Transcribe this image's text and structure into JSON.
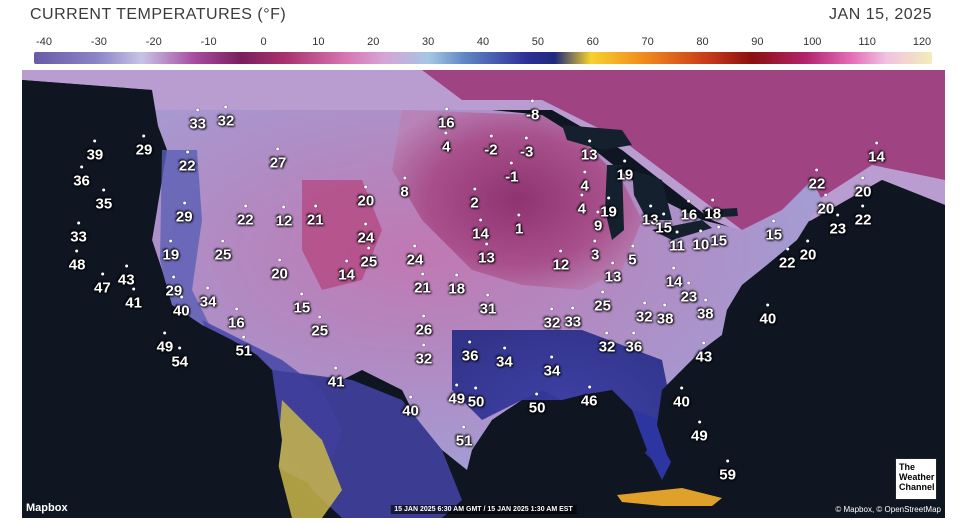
{
  "header": {
    "title": "CURRENT TEMPERATURES (°F)",
    "date": "JAN 15, 2025"
  },
  "scale": {
    "labels": [
      "-40",
      "-30",
      "-20",
      "-10",
      "0",
      "10",
      "20",
      "30",
      "40",
      "50",
      "60",
      "70",
      "80",
      "90",
      "100",
      "110",
      "120"
    ]
  },
  "colors": {
    "background": "#ffffff",
    "ocean": "#0f1622",
    "cold_purple": "#a8336e",
    "cool_lavender": "#c7c3e6",
    "mild_blue": "#3b3fa8",
    "warm_yellow": "#d9c24a"
  },
  "cities": [
    {
      "temp": "39",
      "lon": -123.1,
      "lat": 46.0
    },
    {
      "temp": "29",
      "lon": -119.8,
      "lat": 46.3
    },
    {
      "temp": "33",
      "lon": -116.2,
      "lat": 48.0
    },
    {
      "temp": "32",
      "lon": -114.3,
      "lat": 48.2
    },
    {
      "temp": "22",
      "lon": -116.9,
      "lat": 45.3
    },
    {
      "temp": "36",
      "lon": -124.0,
      "lat": 44.3
    },
    {
      "temp": "35",
      "lon": -122.5,
      "lat": 42.8
    },
    {
      "temp": "29",
      "lon": -117.1,
      "lat": 42.0
    },
    {
      "temp": "27",
      "lon": -110.8,
      "lat": 45.5
    },
    {
      "temp": "22",
      "lon": -113.0,
      "lat": 41.8
    },
    {
      "temp": "12",
      "lon": -110.4,
      "lat": 41.7
    },
    {
      "temp": "21",
      "lon": -108.3,
      "lat": 41.8
    },
    {
      "temp": "20",
      "lon": -104.9,
      "lat": 43.0
    },
    {
      "temp": "8",
      "lon": -102.3,
      "lat": 43.6
    },
    {
      "temp": "33",
      "lon": -124.2,
      "lat": 40.7
    },
    {
      "temp": "48",
      "lon": -124.3,
      "lat": 38.9
    },
    {
      "temp": "19",
      "lon": -118.0,
      "lat": 39.5
    },
    {
      "temp": "25",
      "lon": -114.5,
      "lat": 39.5
    },
    {
      "temp": "24",
      "lon": -104.9,
      "lat": 40.6
    },
    {
      "temp": "25",
      "lon": -104.7,
      "lat": 39.1
    },
    {
      "temp": "24",
      "lon": -101.6,
      "lat": 39.2
    },
    {
      "temp": "20",
      "lon": -110.7,
      "lat": 38.3
    },
    {
      "temp": "14",
      "lon": -106.2,
      "lat": 38.2
    },
    {
      "temp": "47",
      "lon": -122.6,
      "lat": 37.4
    },
    {
      "temp": "43",
      "lon": -121.0,
      "lat": 37.9
    },
    {
      "temp": "41",
      "lon": -120.5,
      "lat": 36.4
    },
    {
      "temp": "29",
      "lon": -117.8,
      "lat": 37.2
    },
    {
      "temp": "40",
      "lon": -117.3,
      "lat": 35.9
    },
    {
      "temp": "34",
      "lon": -115.5,
      "lat": 36.5
    },
    {
      "temp": "15",
      "lon": -109.2,
      "lat": 36.1
    },
    {
      "temp": "21",
      "lon": -101.1,
      "lat": 37.4
    },
    {
      "temp": "16",
      "lon": -113.6,
      "lat": 35.1
    },
    {
      "temp": "25",
      "lon": -108.0,
      "lat": 34.6
    },
    {
      "temp": "26",
      "lon": -101.0,
      "lat": 34.7
    },
    {
      "temp": "49",
      "lon": -118.4,
      "lat": 33.6
    },
    {
      "temp": "54",
      "lon": -117.4,
      "lat": 32.6
    },
    {
      "temp": "51",
      "lon": -113.1,
      "lat": 33.3
    },
    {
      "temp": "32",
      "lon": -101.0,
      "lat": 32.8
    },
    {
      "temp": "41",
      "lon": -106.9,
      "lat": 31.3
    },
    {
      "temp": "16",
      "lon": -99.5,
      "lat": 48.1
    },
    {
      "temp": "4",
      "lon": -99.5,
      "lat": 46.5
    },
    {
      "temp": "-8",
      "lon": -93.7,
      "lat": 48.6
    },
    {
      "temp": "-2",
      "lon": -96.5,
      "lat": 46.3
    },
    {
      "temp": "-3",
      "lon": -94.1,
      "lat": 46.2
    },
    {
      "temp": "-1",
      "lon": -95.1,
      "lat": 44.6
    },
    {
      "temp": "2",
      "lon": -97.6,
      "lat": 42.9
    },
    {
      "temp": "14",
      "lon": -97.2,
      "lat": 40.9
    },
    {
      "temp": "1",
      "lon": -94.6,
      "lat": 41.2
    },
    {
      "temp": "13",
      "lon": -96.8,
      "lat": 39.3
    },
    {
      "temp": "18",
      "lon": -98.8,
      "lat": 37.3
    },
    {
      "temp": "31",
      "lon": -96.7,
      "lat": 36.0
    },
    {
      "temp": "12",
      "lon": -91.8,
      "lat": 38.9
    },
    {
      "temp": "13",
      "lon": -89.9,
      "lat": 46.0
    },
    {
      "temp": "4",
      "lon": -90.2,
      "lat": 44.0
    },
    {
      "temp": "4",
      "lon": -90.4,
      "lat": 42.5
    },
    {
      "temp": "9",
      "lon": -89.3,
      "lat": 41.4
    },
    {
      "temp": "3",
      "lon": -89.5,
      "lat": 39.5
    },
    {
      "temp": "19",
      "lon": -87.5,
      "lat": 44.7
    },
    {
      "temp": "19",
      "lon": -88.6,
      "lat": 42.3
    },
    {
      "temp": "13",
      "lon": -85.8,
      "lat": 41.8
    },
    {
      "temp": "5",
      "lon": -87.0,
      "lat": 39.2
    },
    {
      "temp": "13",
      "lon": -88.3,
      "lat": 38.1
    },
    {
      "temp": "15",
      "lon": -84.9,
      "lat": 41.3
    },
    {
      "temp": "16",
      "lon": -83.2,
      "lat": 42.1
    },
    {
      "temp": "18",
      "lon": -81.6,
      "lat": 42.2
    },
    {
      "temp": "11",
      "lon": -84.0,
      "lat": 40.1
    },
    {
      "temp": "10",
      "lon": -82.4,
      "lat": 40.2
    },
    {
      "temp": "15",
      "lon": -81.2,
      "lat": 40.4
    },
    {
      "temp": "14",
      "lon": -84.2,
      "lat": 37.8
    },
    {
      "temp": "23",
      "lon": -83.2,
      "lat": 36.8
    },
    {
      "temp": "25",
      "lon": -89.0,
      "lat": 36.2
    },
    {
      "temp": "32",
      "lon": -92.4,
      "lat": 35.1
    },
    {
      "temp": "33",
      "lon": -91.0,
      "lat": 35.2
    },
    {
      "temp": "32",
      "lon": -86.2,
      "lat": 35.5
    },
    {
      "temp": "38",
      "lon": -84.8,
      "lat": 35.4
    },
    {
      "temp": "38",
      "lon": -82.1,
      "lat": 35.7
    },
    {
      "temp": "40",
      "lon": -77.9,
      "lat": 35.4
    },
    {
      "temp": "36",
      "lon": -97.9,
      "lat": 33.0
    },
    {
      "temp": "34",
      "lon": -95.6,
      "lat": 32.6
    },
    {
      "temp": "34",
      "lon": -92.4,
      "lat": 32.0
    },
    {
      "temp": "32",
      "lon": -88.7,
      "lat": 33.6
    },
    {
      "temp": "36",
      "lon": -86.9,
      "lat": 33.6
    },
    {
      "temp": "43",
      "lon": -82.2,
      "lat": 32.9
    },
    {
      "temp": "49",
      "lon": -98.8,
      "lat": 30.2
    },
    {
      "temp": "50",
      "lon": -97.5,
      "lat": 30.0
    },
    {
      "temp": "40",
      "lon": -101.9,
      "lat": 29.4
    },
    {
      "temp": "50",
      "lon": -93.4,
      "lat": 29.6
    },
    {
      "temp": "46",
      "lon": -89.9,
      "lat": 30.1
    },
    {
      "temp": "40",
      "lon": -83.7,
      "lat": 30.0
    },
    {
      "temp": "51",
      "lon": -98.3,
      "lat": 27.5
    },
    {
      "temp": "49",
      "lon": -82.5,
      "lat": 27.8
    },
    {
      "temp": "59",
      "lon": -80.6,
      "lat": 25.3
    },
    {
      "temp": "14",
      "lon": -70.6,
      "lat": 45.9
    },
    {
      "temp": "22",
      "lon": -74.6,
      "lat": 44.1
    },
    {
      "temp": "20",
      "lon": -71.5,
      "lat": 43.6
    },
    {
      "temp": "20",
      "lon": -74.0,
      "lat": 42.5
    },
    {
      "temp": "22",
      "lon": -71.5,
      "lat": 41.8
    },
    {
      "temp": "23",
      "lon": -73.2,
      "lat": 41.2
    },
    {
      "temp": "15",
      "lon": -77.5,
      "lat": 40.8
    },
    {
      "temp": "20",
      "lon": -75.2,
      "lat": 39.5
    },
    {
      "temp": "22",
      "lon": -76.6,
      "lat": 39.0
    }
  ],
  "footer": {
    "left": "Mapbox",
    "center": "15 JAN 2025 6:30 AM GMT / 15 JAN 2025 1:30 AM EST",
    "right": "© Mapbox, © OpenStreetMap"
  },
  "logo": {
    "line1": "The",
    "line2": "Weather",
    "line3": "Channel"
  }
}
